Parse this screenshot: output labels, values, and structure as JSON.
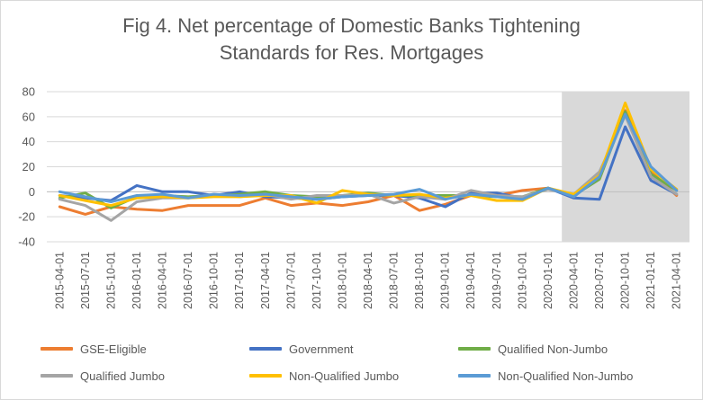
{
  "chart_data": {
    "type": "line",
    "title_lines": [
      "Fig 4. Net percentage of Domestic Banks Tightening",
      "Standards for Res. Mortgages"
    ],
    "xlabel": "",
    "ylabel": "",
    "ylim": [
      -40,
      80
    ],
    "yticks": [
      -40,
      -20,
      0,
      20,
      40,
      60,
      80
    ],
    "grid": "horizontal",
    "legend_position": "bottom",
    "shaded_region": {
      "start": "2020-04-01",
      "end": "2021-04-01",
      "color": "#d9d9d9"
    },
    "x": [
      "2015-04-01",
      "2015-07-01",
      "2015-10-01",
      "2016-01-01",
      "2016-04-01",
      "2016-07-01",
      "2016-10-01",
      "2017-01-01",
      "2017-04-01",
      "2017-07-01",
      "2017-10-01",
      "2018-01-01",
      "2018-04-01",
      "2018-07-01",
      "2018-10-01",
      "2019-01-01",
      "2019-04-01",
      "2019-07-01",
      "2019-10-01",
      "2020-01-01",
      "2020-04-01",
      "2020-07-01",
      "2020-10-01",
      "2021-01-01",
      "2021-04-01"
    ],
    "series": [
      {
        "name": "GSE-Eligible",
        "color": "#ed7d31",
        "values": [
          -12,
          -18,
          -12,
          -14,
          -15,
          -11,
          -11,
          -11,
          -5,
          -11,
          -9,
          -11,
          -8,
          -3,
          -15,
          -10,
          -3,
          -3,
          1,
          3,
          -4,
          14,
          65,
          16,
          -3
        ]
      },
      {
        "name": "Government",
        "color": "#4472c4",
        "values": [
          -3,
          -5,
          -7,
          5,
          0,
          0,
          -3,
          0,
          -4,
          -5,
          -6,
          -4,
          -3,
          -3,
          -5,
          -12,
          -1,
          -1,
          -5,
          3,
          -5,
          -6,
          52,
          9,
          -2
        ]
      },
      {
        "name": "Qualified Non-Jumbo",
        "color": "#70ad47",
        "values": [
          -5,
          -1,
          -13,
          -4,
          -3,
          -4,
          -3,
          -2,
          0,
          -3,
          -4,
          -3,
          -1,
          -3,
          -3,
          -3,
          -3,
          -4,
          -4,
          3,
          -3,
          10,
          64,
          14,
          1
        ]
      },
      {
        "name": "Qualified Jumbo",
        "color": "#a5a5a5",
        "values": [
          -6,
          -11,
          -23,
          -8,
          -5,
          -5,
          -2,
          -4,
          -2,
          -6,
          -3,
          -3,
          -2,
          -9,
          -4,
          -6,
          1,
          -3,
          -4,
          2,
          -2,
          16,
          61,
          12,
          -2
        ]
      },
      {
        "name": "Non-Qualified Jumbo",
        "color": "#ffc000",
        "values": [
          -3,
          -7,
          -11,
          -5,
          -4,
          -5,
          -4,
          -4,
          -3,
          -3,
          -9,
          1,
          -2,
          -3,
          -2,
          -5,
          -3,
          -7,
          -7,
          3,
          -2,
          13,
          71,
          18,
          2
        ]
      },
      {
        "name": "Non-Qualified Non-Jumbo",
        "color": "#5b9bd5",
        "values": [
          0,
          -4,
          -8,
          -3,
          -2,
          -5,
          -2,
          -3,
          -2,
          -4,
          -6,
          -4,
          -3,
          -2,
          2,
          -6,
          -2,
          -4,
          -6,
          3,
          -4,
          12,
          62,
          20,
          1
        ]
      }
    ]
  }
}
